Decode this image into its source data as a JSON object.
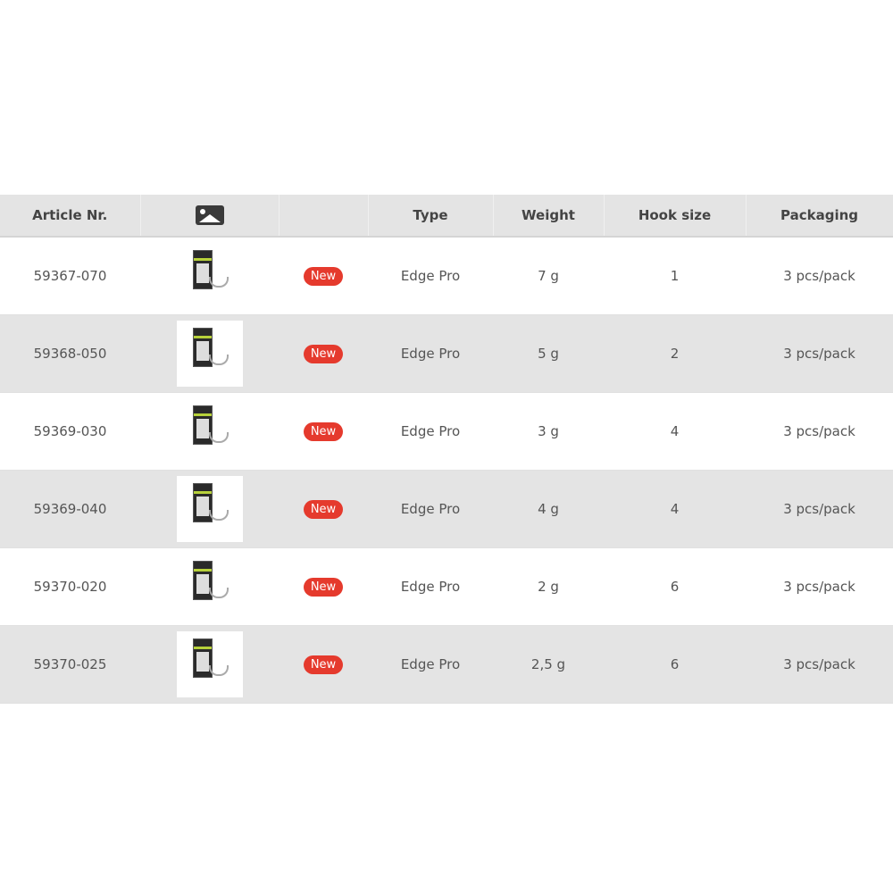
{
  "table": {
    "headers": [
      "Article Nr.",
      "",
      "",
      "Type",
      "Weight",
      "Hook size",
      "Packaging"
    ],
    "header_image_icon": "image-icon",
    "rows": [
      {
        "article": "59367-070",
        "badge": "New",
        "type": "Edge Pro",
        "weight": "7 g",
        "hook": "1",
        "packaging": "3 pcs/pack"
      },
      {
        "article": "59368-050",
        "badge": "New",
        "type": "Edge Pro",
        "weight": "5 g",
        "hook": "2",
        "packaging": "3 pcs/pack"
      },
      {
        "article": "59369-030",
        "badge": "New",
        "type": "Edge Pro",
        "weight": "3 g",
        "hook": "4",
        "packaging": "3 pcs/pack"
      },
      {
        "article": "59369-040",
        "badge": "New",
        "type": "Edge Pro",
        "weight": "4 g",
        "hook": "4",
        "packaging": "3 pcs/pack"
      },
      {
        "article": "59370-020",
        "badge": "New",
        "type": "Edge Pro",
        "weight": "2 g",
        "hook": "6",
        "packaging": "3 pcs/pack"
      },
      {
        "article": "59370-025",
        "badge": "New",
        "type": "Edge Pro",
        "weight": "2,5 g",
        "hook": "6",
        "packaging": "3 pcs/pack"
      }
    ]
  },
  "colors": {
    "badge": "#e53a2d",
    "header_bg": "#e4e4e4"
  }
}
